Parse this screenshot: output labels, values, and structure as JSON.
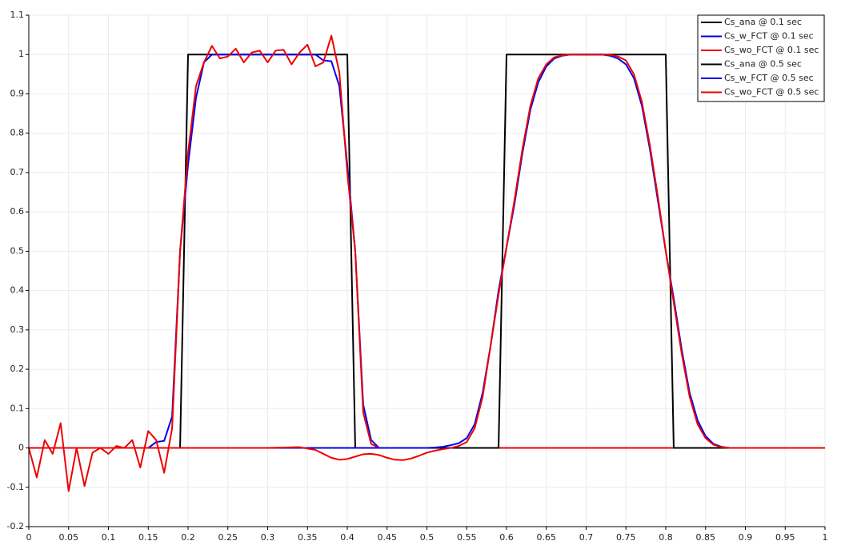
{
  "chart_data": {
    "type": "line",
    "xlim": [
      0,
      1
    ],
    "ylim": [
      -0.2,
      1.1
    ],
    "xticks": [
      0,
      0.05,
      0.1,
      0.15,
      0.2,
      0.25,
      0.3,
      0.35,
      0.4,
      0.45,
      0.5,
      0.55,
      0.6,
      0.65,
      0.7,
      0.75,
      0.8,
      0.85,
      0.9,
      0.95,
      1
    ],
    "yticks": [
      -0.2,
      -0.1,
      0,
      0.1,
      0.2,
      0.3,
      0.4,
      0.5,
      0.6,
      0.7,
      0.8,
      0.9,
      1,
      1.1
    ],
    "grid": true,
    "legend": "top-right",
    "series": [
      {
        "name": "Cs_ana @ 0.1 sec",
        "color": "#000000",
        "x": [
          0,
          0.19,
          0.2,
          0.4,
          0.41,
          1
        ],
        "values": [
          0,
          0,
          1,
          1,
          0,
          0
        ]
      },
      {
        "name": "Cs_w_FCT @ 0.1 sec",
        "color": "#0000ee",
        "x": [
          0,
          0.15,
          0.16,
          0.17,
          0.18,
          0.19,
          0.2,
          0.21,
          0.22,
          0.23,
          0.24,
          0.36,
          0.37,
          0.38,
          0.39,
          0.4,
          0.41,
          0.42,
          0.43,
          0.44,
          1
        ],
        "values": [
          0,
          0,
          0.015,
          0.018,
          0.08,
          0.5,
          0.72,
          0.89,
          0.98,
          1,
          1,
          1,
          0.985,
          0.983,
          0.92,
          0.72,
          0.5,
          0.11,
          0.02,
          0,
          0
        ]
      },
      {
        "name": "Cs_wo_FCT @ 0.1 sec",
        "color": "#ee0000",
        "x": [
          0,
          0.01,
          0.02,
          0.03,
          0.04,
          0.05,
          0.06,
          0.07,
          0.08,
          0.09,
          0.1,
          0.11,
          0.12,
          0.13,
          0.14,
          0.15,
          0.16,
          0.17,
          0.18,
          0.19,
          0.2,
          0.21,
          0.22,
          0.23,
          0.24,
          0.25,
          0.26,
          0.27,
          0.28,
          0.29,
          0.3,
          0.31,
          0.32,
          0.33,
          0.34,
          0.35,
          0.36,
          0.37,
          0.38,
          0.39,
          0.4,
          0.41,
          0.42,
          0.43,
          0.44,
          1
        ],
        "values": [
          0,
          -0.075,
          0.02,
          -0.015,
          0.063,
          -0.11,
          0,
          -0.097,
          -0.012,
          0,
          -0.015,
          0.005,
          0,
          0.02,
          -0.05,
          0.043,
          0.02,
          -0.063,
          0.05,
          0.5,
          0.75,
          0.92,
          0.98,
          1.022,
          0.99,
          0.995,
          1.015,
          0.98,
          1.005,
          1.01,
          0.98,
          1.01,
          1.012,
          0.975,
          1.005,
          1.025,
          0.97,
          0.98,
          1.048,
          0.955,
          0.7,
          0.5,
          0.09,
          0.01,
          0,
          0
        ]
      },
      {
        "name": "Cs_ana @ 0.5 sec",
        "color": "#000000",
        "x": [
          0,
          0.59,
          0.6,
          0.8,
          0.81,
          1
        ],
        "values": [
          0,
          0,
          1,
          1,
          0,
          0
        ]
      },
      {
        "name": "Cs_w_FCT @ 0.5 sec",
        "color": "#0000ee",
        "x": [
          0,
          0.5,
          0.51,
          0.52,
          0.53,
          0.54,
          0.55,
          0.56,
          0.57,
          0.58,
          0.59,
          0.6,
          0.61,
          0.62,
          0.63,
          0.64,
          0.65,
          0.66,
          0.67,
          0.68,
          0.72,
          0.73,
          0.74,
          0.75,
          0.76,
          0.77,
          0.78,
          0.79,
          0.8,
          0.81,
          0.82,
          0.83,
          0.84,
          0.85,
          0.86,
          0.87,
          0.88,
          1
        ],
        "values": [
          0,
          0,
          0.001,
          0.003,
          0.007,
          0.012,
          0.025,
          0.06,
          0.14,
          0.26,
          0.4,
          0.51,
          0.62,
          0.75,
          0.86,
          0.93,
          0.97,
          0.99,
          0.997,
          1,
          1,
          0.997,
          0.99,
          0.975,
          0.94,
          0.87,
          0.76,
          0.63,
          0.5,
          0.38,
          0.25,
          0.14,
          0.07,
          0.03,
          0.01,
          0.003,
          0,
          0
        ]
      },
      {
        "name": "Cs_wo_FCT @ 0.5 sec",
        "color": "#ee0000",
        "x": [
          0,
          0.3,
          0.34,
          0.36,
          0.37,
          0.38,
          0.39,
          0.4,
          0.41,
          0.42,
          0.43,
          0.44,
          0.45,
          0.46,
          0.47,
          0.48,
          0.49,
          0.5,
          0.51,
          0.52,
          0.53,
          0.54,
          0.55,
          0.56,
          0.57,
          0.58,
          0.59,
          0.6,
          0.61,
          0.62,
          0.63,
          0.64,
          0.65,
          0.66,
          0.67,
          0.68,
          0.72,
          0.73,
          0.74,
          0.75,
          0.76,
          0.77,
          0.78,
          0.79,
          0.8,
          0.81,
          0.82,
          0.83,
          0.84,
          0.85,
          0.86,
          0.87,
          0.88,
          1
        ],
        "values": [
          0,
          0,
          0.002,
          -0.005,
          -0.015,
          -0.025,
          -0.03,
          -0.028,
          -0.022,
          -0.016,
          -0.015,
          -0.018,
          -0.025,
          -0.03,
          -0.031,
          -0.027,
          -0.02,
          -0.012,
          -0.007,
          -0.003,
          0,
          0.005,
          0.015,
          0.05,
          0.13,
          0.26,
          0.39,
          0.51,
          0.63,
          0.76,
          0.87,
          0.94,
          0.975,
          0.993,
          0.998,
          1,
          1,
          0.999,
          0.995,
          0.985,
          0.95,
          0.88,
          0.77,
          0.64,
          0.5,
          0.37,
          0.24,
          0.13,
          0.06,
          0.025,
          0.008,
          0.002,
          0,
          0
        ]
      }
    ]
  }
}
